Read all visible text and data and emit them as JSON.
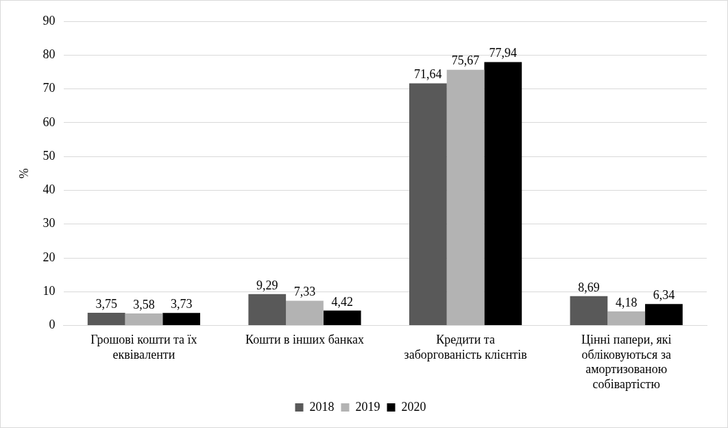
{
  "chart_data": {
    "type": "bar",
    "ylabel": "%",
    "categories": [
      "Грошові кошти та їх еквіваленти",
      "Кошти в інших банках",
      "Кредити та заборгованість клієнтів",
      "Цінні папери, які обліковуються за амортизованою собівартістю"
    ],
    "series": [
      {
        "name": "2018",
        "color": "#595959",
        "values": [
          3.75,
          9.29,
          71.64,
          8.69
        ],
        "value_labels": [
          "3,75",
          "9,29",
          "71,64",
          "8,69"
        ]
      },
      {
        "name": "2019",
        "color": "#b3b3b3",
        "values": [
          3.58,
          7.33,
          75.67,
          4.18
        ],
        "value_labels": [
          "3,58",
          "7,33",
          "75,67",
          "4,18"
        ]
      },
      {
        "name": "2020",
        "color": "#000000",
        "values": [
          3.73,
          4.42,
          77.94,
          6.34
        ],
        "value_labels": [
          "3,73",
          "4,42",
          "77,94",
          "6,34"
        ]
      }
    ],
    "ylim": [
      0,
      90
    ],
    "yticks": [
      0,
      10,
      20,
      30,
      40,
      50,
      60,
      70,
      80,
      90
    ],
    "grid": "y",
    "legend": "bottom"
  }
}
